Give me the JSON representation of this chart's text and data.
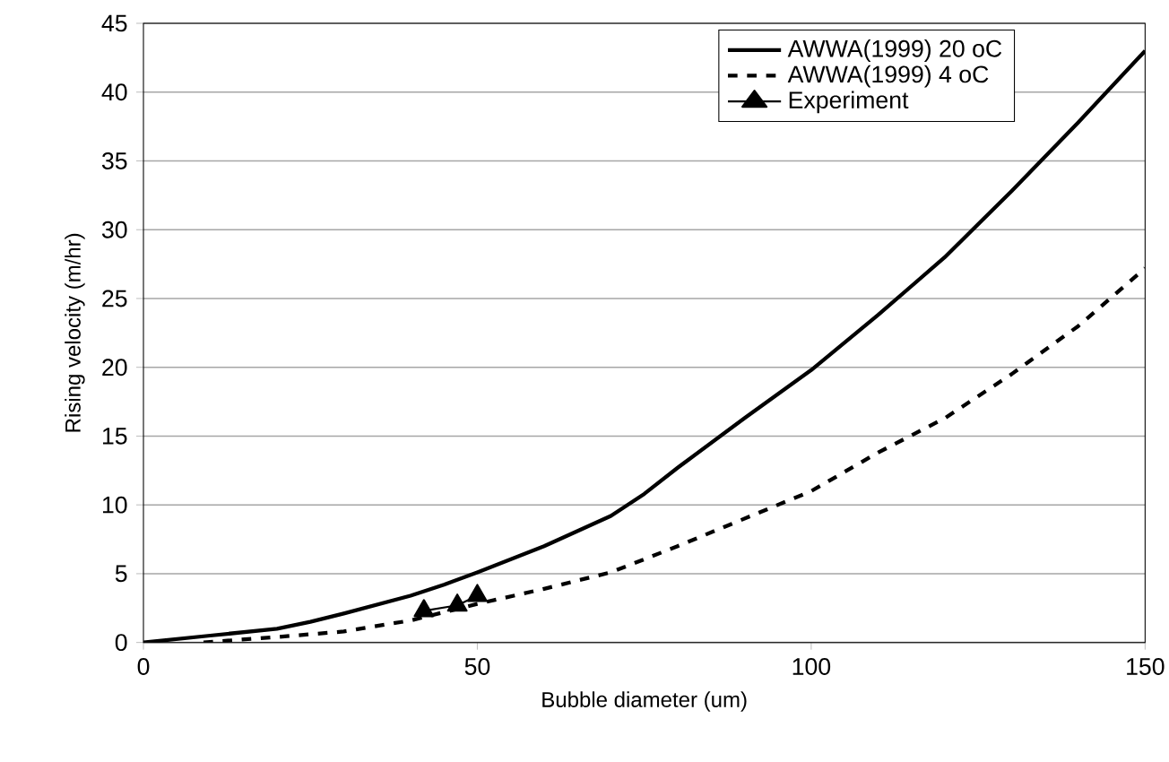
{
  "chart_data": {
    "type": "line",
    "xlabel": "Bubble diameter (um)",
    "ylabel": "Rising velocity (m/hr)",
    "xlim": [
      0,
      150
    ],
    "xticks": [
      0,
      50,
      100,
      150
    ],
    "ylim": [
      0,
      45
    ],
    "yticks": [
      0,
      5,
      10,
      15,
      20,
      25,
      30,
      35,
      40,
      45
    ],
    "grid": "y",
    "legend": "top right",
    "series": [
      {
        "name": "AWWA(1999) 20 oC",
        "color": "#000000",
        "line_style": "solid",
        "marker": "none",
        "x": [
          0,
          10,
          20,
          25,
          30,
          40,
          45,
          50,
          60,
          70,
          75,
          80,
          90,
          100,
          110,
          120,
          130,
          140,
          150
        ],
        "values": [
          0,
          0.5,
          1.0,
          1.5,
          2.1,
          3.4,
          4.2,
          5.1,
          7.0,
          9.2,
          10.8,
          12.7,
          16.3,
          19.8,
          23.8,
          28.0,
          32.8,
          37.8,
          43.0
        ]
      },
      {
        "name": "AWWA(1999) 4 oC",
        "color": "#000000",
        "line_style": "dashed",
        "marker": "none",
        "x": [
          9,
          20,
          30,
          40,
          50,
          60,
          70,
          80,
          90,
          100,
          110,
          120,
          130,
          140,
          150
        ],
        "values": [
          0,
          0.4,
          0.8,
          1.6,
          2.8,
          3.9,
          5.1,
          7.0,
          9.0,
          11.0,
          13.8,
          16.3,
          19.5,
          23.0,
          27.2
        ]
      },
      {
        "name": "Experiment",
        "color": "#000000",
        "line_style": "solid",
        "marker": "triangle",
        "x": [
          42,
          47,
          50
        ],
        "values": [
          2.3,
          2.7,
          3.4
        ]
      }
    ]
  }
}
